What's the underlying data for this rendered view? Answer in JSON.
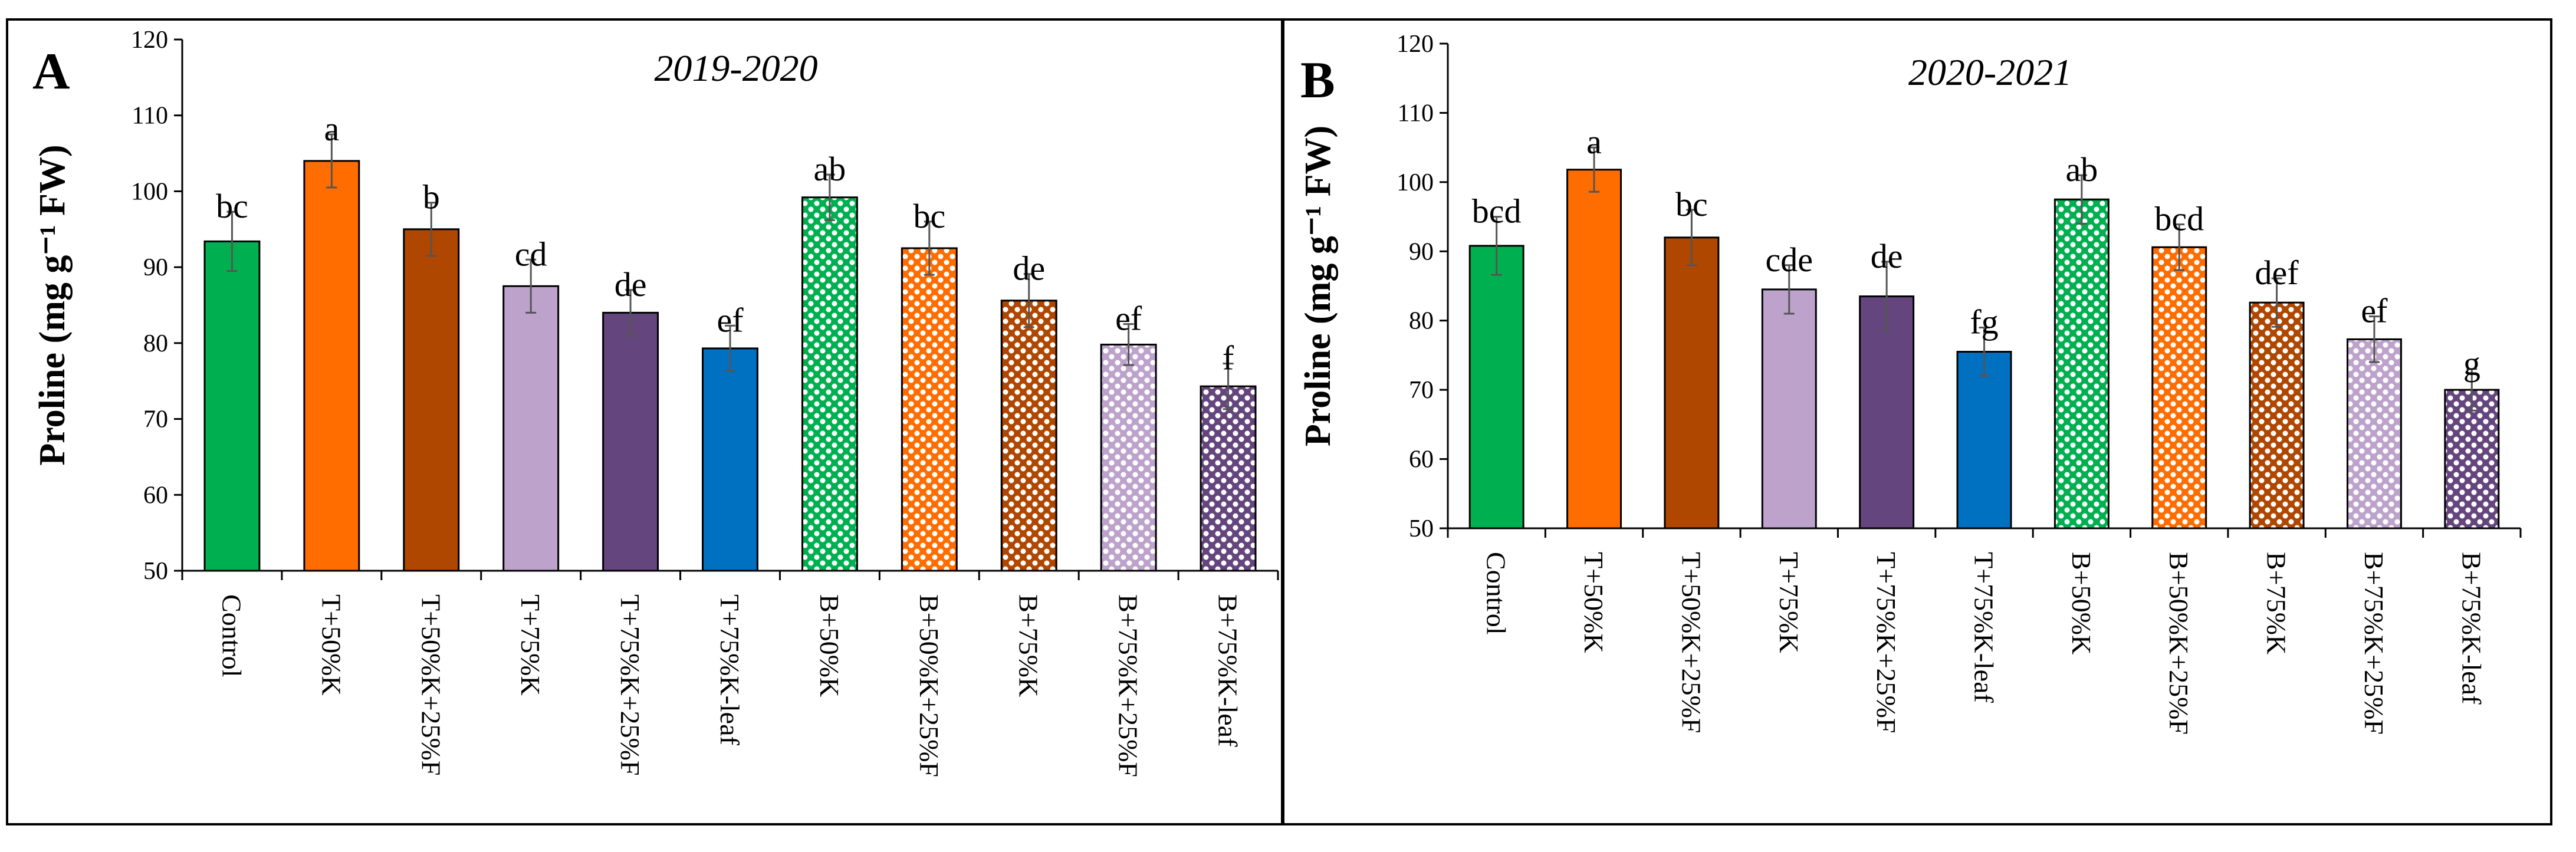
{
  "chart_data": [
    {
      "type": "bar",
      "panel": "A",
      "title": "2019-2020",
      "xlabel": "",
      "ylabel": "Proline (mg g⁻¹ FW)",
      "ylim": [
        50,
        120
      ],
      "yticks": [
        50,
        60,
        70,
        80,
        90,
        100,
        110,
        120
      ],
      "grid": false,
      "categories": [
        "Control",
        "T+50%K",
        "T+50%K+25%F",
        "T+75%K",
        "T+75%K+25%F",
        "T+75%K-leaf",
        "B+50%K",
        "B+50%K+25%F",
        "B+75%K",
        "B+75%K+25%F",
        "B+75%K-leaf"
      ],
      "values": [
        93.4,
        104.0,
        95.0,
        87.5,
        84.0,
        79.3,
        99.2,
        92.5,
        85.6,
        79.8,
        74.3
      ],
      "errors": [
        3.9,
        3.5,
        3.5,
        3.5,
        3.0,
        3.0,
        3.0,
        3.5,
        3.5,
        2.7,
        3.0
      ],
      "significance": [
        "bc",
        "a",
        "b",
        "cd",
        "de",
        "ef",
        "ab",
        "bc",
        "de",
        "ef",
        "f"
      ]
    },
    {
      "type": "bar",
      "panel": "B",
      "title": "2020-2021",
      "xlabel": "",
      "ylabel": "Proline (mg g⁻¹ FW)",
      "ylim": [
        50,
        120
      ],
      "yticks": [
        50,
        60,
        70,
        80,
        90,
        100,
        110,
        120
      ],
      "grid": false,
      "categories": [
        "Control",
        "T+50%K",
        "T+50%K+25%F",
        "T+75%K",
        "T+75%K+25%F",
        "T+75%K-leaf",
        "B+50%K",
        "B+50%K+25%F",
        "B+75%K",
        "B+75%K+25%F",
        "B+75%K-leaf"
      ],
      "values": [
        90.8,
        101.8,
        92.0,
        84.5,
        83.5,
        75.5,
        97.5,
        90.6,
        82.6,
        77.3,
        70.0
      ],
      "errors": [
        4.2,
        3.2,
        4.0,
        3.5,
        5.0,
        3.5,
        3.5,
        3.3,
        3.5,
        3.3,
        3.0
      ],
      "significance": [
        "bcd",
        "a",
        "bc",
        "cde",
        "de",
        "fg",
        "ab",
        "bcd",
        "def",
        "ef",
        "g"
      ]
    }
  ],
  "colors": [
    "#00b050",
    "#ff6d00",
    "#b04700",
    "#bda3cc",
    "#65457d",
    "#0070c0",
    "#00b050",
    "#ff6d00",
    "#b04700",
    "#bda3cc",
    "#65457d"
  ],
  "patterned": [
    false,
    false,
    false,
    false,
    false,
    false,
    true,
    true,
    true,
    true,
    true
  ]
}
